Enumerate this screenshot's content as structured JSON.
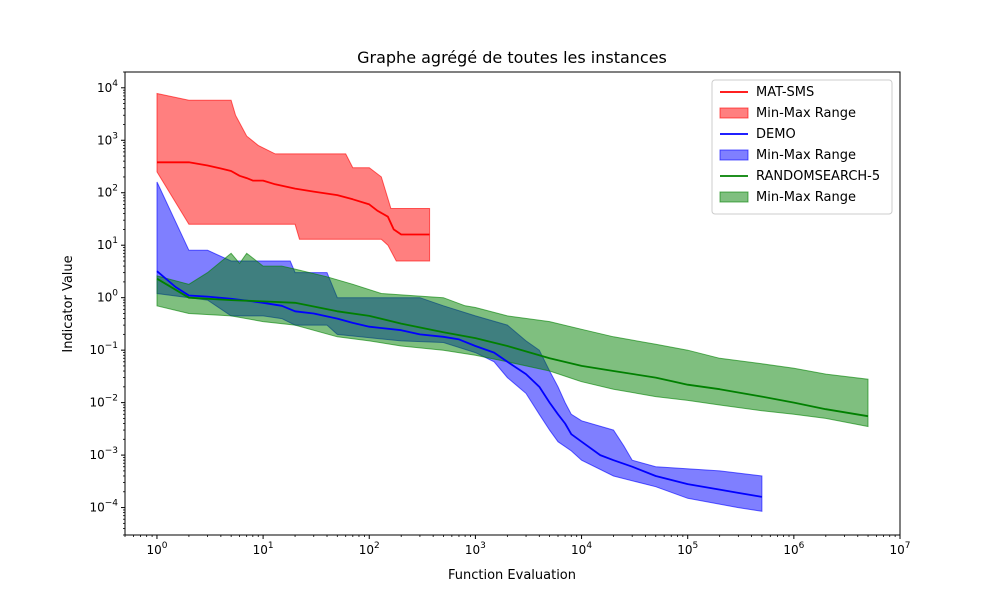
{
  "chart_data": {
    "type": "line",
    "title": "Graphe agrégé de toutes les instances",
    "xlabel": "Function Evaluation",
    "ylabel": "Indicator Value",
    "xscale": "log",
    "yscale": "log",
    "xlim": [
      0.5,
      10000000
    ],
    "ylim": [
      3e-05,
      20000
    ],
    "x_ticks": [
      {
        "value": 1,
        "base": "10",
        "exp": "0"
      },
      {
        "value": 10,
        "base": "10",
        "exp": "1"
      },
      {
        "value": 100,
        "base": "10",
        "exp": "2"
      },
      {
        "value": 1000,
        "base": "10",
        "exp": "3"
      },
      {
        "value": 10000,
        "base": "10",
        "exp": "4"
      },
      {
        "value": 100000,
        "base": "10",
        "exp": "5"
      },
      {
        "value": 1000000,
        "base": "10",
        "exp": "6"
      },
      {
        "value": 10000000,
        "base": "10",
        "exp": "7"
      }
    ],
    "y_ticks": [
      {
        "value": 0.0001,
        "base": "10",
        "exp": "−4"
      },
      {
        "value": 0.001,
        "base": "10",
        "exp": "−3"
      },
      {
        "value": 0.01,
        "base": "10",
        "exp": "−2"
      },
      {
        "value": 0.1,
        "base": "10",
        "exp": "−1"
      },
      {
        "value": 1,
        "base": "10",
        "exp": "0"
      },
      {
        "value": 10,
        "base": "10",
        "exp": "1"
      },
      {
        "value": 100,
        "base": "10",
        "exp": "2"
      },
      {
        "value": 1000,
        "base": "10",
        "exp": "3"
      },
      {
        "value": 10000,
        "base": "10",
        "exp": "4"
      }
    ],
    "legend_position": "top-right",
    "grid": false,
    "series": [
      {
        "name": "MAT-SMS",
        "range_name": "Min-Max Range",
        "color": "#ff0000",
        "fill": "#ff0000",
        "fill_opacity": 0.5,
        "line": [
          [
            1,
            380
          ],
          [
            2,
            380
          ],
          [
            3,
            330
          ],
          [
            4,
            290
          ],
          [
            5,
            260
          ],
          [
            6,
            210
          ],
          [
            7,
            190
          ],
          [
            8,
            170
          ],
          [
            10,
            170
          ],
          [
            13,
            145
          ],
          [
            20,
            120
          ],
          [
            30,
            105
          ],
          [
            50,
            90
          ],
          [
            70,
            75
          ],
          [
            100,
            60
          ],
          [
            120,
            45
          ],
          [
            150,
            35
          ],
          [
            170,
            20
          ],
          [
            200,
            16
          ],
          [
            300,
            16
          ],
          [
            370,
            16
          ]
        ],
        "max": [
          [
            1,
            7800
          ],
          [
            2,
            5800
          ],
          [
            5,
            5800
          ],
          [
            5.5,
            3000
          ],
          [
            7,
            1200
          ],
          [
            9,
            800
          ],
          [
            13,
            550
          ],
          [
            20,
            550
          ],
          [
            60,
            550
          ],
          [
            70,
            300
          ],
          [
            100,
            300
          ],
          [
            130,
            200
          ],
          [
            160,
            50
          ],
          [
            300,
            50
          ],
          [
            370,
            50
          ]
        ],
        "min": [
          [
            1,
            250
          ],
          [
            2,
            25
          ],
          [
            20,
            25
          ],
          [
            22,
            13
          ],
          [
            130,
            13
          ],
          [
            150,
            10
          ],
          [
            180,
            5
          ],
          [
            370,
            5
          ]
        ]
      },
      {
        "name": "DEMO",
        "range_name": "Min-Max Range",
        "color": "#0000ff",
        "fill": "#0000ff",
        "fill_opacity": 0.5,
        "line": [
          [
            1,
            3.2
          ],
          [
            1.5,
            1.6
          ],
          [
            2,
            1.1
          ],
          [
            3,
            1.05
          ],
          [
            5,
            0.95
          ],
          [
            8,
            0.85
          ],
          [
            10,
            0.8
          ],
          [
            15,
            0.7
          ],
          [
            20,
            0.55
          ],
          [
            30,
            0.5
          ],
          [
            50,
            0.4
          ],
          [
            70,
            0.33
          ],
          [
            100,
            0.28
          ],
          [
            200,
            0.24
          ],
          [
            300,
            0.2
          ],
          [
            500,
            0.18
          ],
          [
            700,
            0.16
          ],
          [
            1000,
            0.12
          ],
          [
            1500,
            0.09
          ],
          [
            2000,
            0.06
          ],
          [
            3000,
            0.035
          ],
          [
            4000,
            0.02
          ],
          [
            5000,
            0.01
          ],
          [
            6000,
            0.006
          ],
          [
            7000,
            0.004
          ],
          [
            8000,
            0.0025
          ],
          [
            10000,
            0.0018
          ],
          [
            15000,
            0.001
          ],
          [
            20000,
            0.0008
          ],
          [
            30000,
            0.0006
          ],
          [
            50000,
            0.0004
          ],
          [
            100000,
            0.00028
          ],
          [
            200000,
            0.00022
          ],
          [
            300000,
            0.00019
          ],
          [
            500000,
            0.00016
          ]
        ],
        "max": [
          [
            1,
            160
          ],
          [
            2,
            8
          ],
          [
            3,
            8
          ],
          [
            5,
            5
          ],
          [
            18,
            5
          ],
          [
            20,
            3
          ],
          [
            40,
            3
          ],
          [
            50,
            1
          ],
          [
            300,
            1
          ],
          [
            500,
            0.7
          ],
          [
            1000,
            0.45
          ],
          [
            2000,
            0.3
          ],
          [
            3000,
            0.15
          ],
          [
            4000,
            0.1
          ],
          [
            5000,
            0.04
          ],
          [
            6000,
            0.02
          ],
          [
            7000,
            0.01
          ],
          [
            8000,
            0.006
          ],
          [
            10000,
            0.0045
          ],
          [
            20000,
            0.003
          ],
          [
            25000,
            0.0015
          ],
          [
            30000,
            0.0008
          ],
          [
            50000,
            0.0006
          ],
          [
            200000,
            0.0005
          ],
          [
            500000,
            0.0004
          ]
        ],
        "min": [
          [
            1,
            1.2
          ],
          [
            3,
            0.9
          ],
          [
            5,
            0.45
          ],
          [
            10,
            0.45
          ],
          [
            15,
            0.4
          ],
          [
            20,
            0.3
          ],
          [
            40,
            0.3
          ],
          [
            50,
            0.2
          ],
          [
            200,
            0.15
          ],
          [
            500,
            0.14
          ],
          [
            1000,
            0.09
          ],
          [
            1500,
            0.06
          ],
          [
            2000,
            0.03
          ],
          [
            3000,
            0.015
          ],
          [
            4000,
            0.006
          ],
          [
            5000,
            0.003
          ],
          [
            6000,
            0.0018
          ],
          [
            8000,
            0.0012
          ],
          [
            10000,
            0.0008
          ],
          [
            20000,
            0.0004
          ],
          [
            50000,
            0.00025
          ],
          [
            100000,
            0.00015
          ],
          [
            300000,
            0.0001
          ],
          [
            500000,
            8.5e-05
          ]
        ]
      },
      {
        "name": "RANDOMSEARCH-5",
        "range_name": "Min-Max Range",
        "color": "#008000",
        "fill": "#008000",
        "fill_opacity": 0.5,
        "line": [
          [
            1,
            2.3
          ],
          [
            2,
            1.0
          ],
          [
            5,
            0.9
          ],
          [
            10,
            0.85
          ],
          [
            20,
            0.8
          ],
          [
            50,
            0.55
          ],
          [
            100,
            0.45
          ],
          [
            200,
            0.32
          ],
          [
            500,
            0.22
          ],
          [
            1000,
            0.17
          ],
          [
            2000,
            0.12
          ],
          [
            5000,
            0.07
          ],
          [
            10000,
            0.05
          ],
          [
            20000,
            0.04
          ],
          [
            50000,
            0.03
          ],
          [
            100000,
            0.022
          ],
          [
            200000,
            0.018
          ],
          [
            500000,
            0.013
          ],
          [
            1000000,
            0.01
          ],
          [
            2000000,
            0.0075
          ],
          [
            5000000,
            0.0055
          ]
        ],
        "max": [
          [
            1,
            2.6
          ],
          [
            2,
            1.8
          ],
          [
            3,
            3
          ],
          [
            5,
            7
          ],
          [
            6,
            4.5
          ],
          [
            7,
            7
          ],
          [
            10,
            4
          ],
          [
            15,
            4
          ],
          [
            20,
            3.5
          ],
          [
            40,
            2.5
          ],
          [
            70,
            1.8
          ],
          [
            130,
            1.2
          ],
          [
            500,
            1.0
          ],
          [
            800,
            0.7
          ],
          [
            1000,
            0.65
          ],
          [
            2000,
            0.45
          ],
          [
            5000,
            0.35
          ],
          [
            10000,
            0.25
          ],
          [
            20000,
            0.18
          ],
          [
            50000,
            0.13
          ],
          [
            100000,
            0.1
          ],
          [
            200000,
            0.07
          ],
          [
            500000,
            0.055
          ],
          [
            1000000,
            0.045
          ],
          [
            2000000,
            0.035
          ],
          [
            5000000,
            0.028
          ]
        ],
        "min": [
          [
            1,
            0.7
          ],
          [
            2,
            0.5
          ],
          [
            5,
            0.45
          ],
          [
            10,
            0.35
          ],
          [
            20,
            0.3
          ],
          [
            50,
            0.18
          ],
          [
            100,
            0.15
          ],
          [
            200,
            0.12
          ],
          [
            500,
            0.1
          ],
          [
            1000,
            0.08
          ],
          [
            2000,
            0.06
          ],
          [
            5000,
            0.04
          ],
          [
            10000,
            0.025
          ],
          [
            20000,
            0.018
          ],
          [
            50000,
            0.013
          ],
          [
            100000,
            0.011
          ],
          [
            200000,
            0.009
          ],
          [
            500000,
            0.007
          ],
          [
            1000000,
            0.006
          ],
          [
            2000000,
            0.005
          ],
          [
            5000000,
            0.0035
          ]
        ]
      }
    ]
  }
}
